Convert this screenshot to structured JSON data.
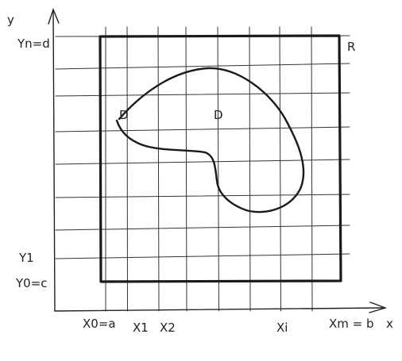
{
  "colors": {
    "ink": "#222222",
    "grid": "#333333",
    "background": "#ffffff"
  },
  "labels": {
    "y_axis": "y",
    "x_axis": "x",
    "y_top": "Yn=d",
    "y_one": "Y1",
    "y_zero": "Y0=c",
    "x_zero": "X0=a",
    "x_one": "X1",
    "x_two": "X2",
    "x_i": "Xi",
    "x_end": "Xm = b",
    "rect_name": "R",
    "region_name_left": "D",
    "region_name_center": "D"
  }
}
